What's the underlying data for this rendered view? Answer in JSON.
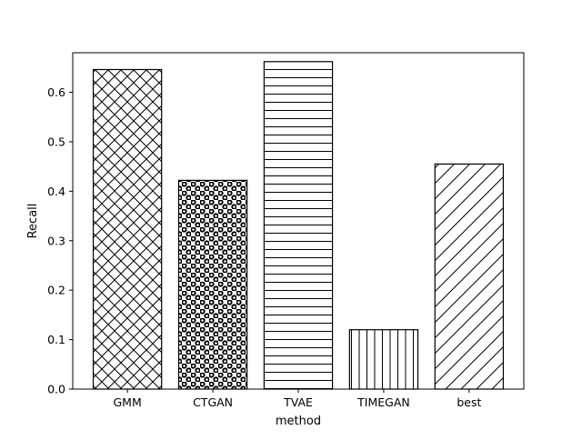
{
  "chart_data": {
    "type": "bar",
    "categories": [
      "GMM",
      "CTGAN",
      "TVAE",
      "TIMEGAN",
      "best"
    ],
    "values": [
      0.646,
      0.422,
      0.662,
      0.12,
      0.455
    ],
    "hatches": [
      "crosshatch",
      "circles",
      "horizontal",
      "vertical",
      "diagonal"
    ],
    "bar_fill": "#ffffff",
    "bar_edge": "#000000",
    "xlabel": "method",
    "ylabel": "Recall",
    "ylim": [
      0,
      0.68
    ],
    "yticks": [
      0.0,
      0.1,
      0.2,
      0.3,
      0.4,
      0.5,
      0.6
    ],
    "ytick_labels": [
      "0.0",
      "0.1",
      "0.2",
      "0.3",
      "0.4",
      "0.5",
      "0.6"
    ],
    "grid": false,
    "legend": "none"
  }
}
